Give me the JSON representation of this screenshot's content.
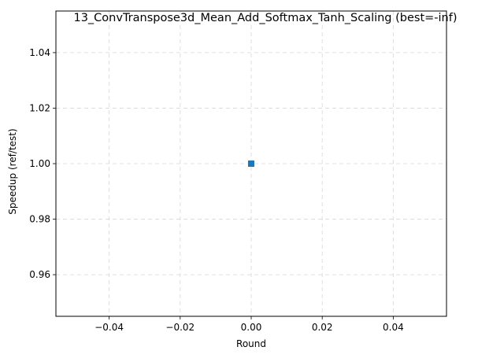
{
  "chart_data": {
    "type": "line",
    "title": "13_ConvTranspose3d_Mean_Add_Softmax_Tanh_Scaling (best=-inf)",
    "xlabel": "Round",
    "ylabel": "Speedup (ref/test)",
    "xlim": [
      -0.055,
      0.055
    ],
    "ylim": [
      0.945,
      1.055
    ],
    "xticks": [
      -0.04,
      -0.02,
      0.0,
      0.02,
      0.04
    ],
    "xtick_labels": [
      "−0.04",
      "−0.02",
      "0.00",
      "0.02",
      "0.04"
    ],
    "yticks": [
      0.96,
      0.98,
      1.0,
      1.02,
      1.04
    ],
    "ytick_labels": [
      "0.96",
      "0.98",
      "1.00",
      "1.02",
      "1.04"
    ],
    "grid": true,
    "series": [
      {
        "x": [
          0
        ],
        "y": [
          1.0
        ],
        "color": "#1f77b4",
        "marker": "square"
      }
    ]
  }
}
